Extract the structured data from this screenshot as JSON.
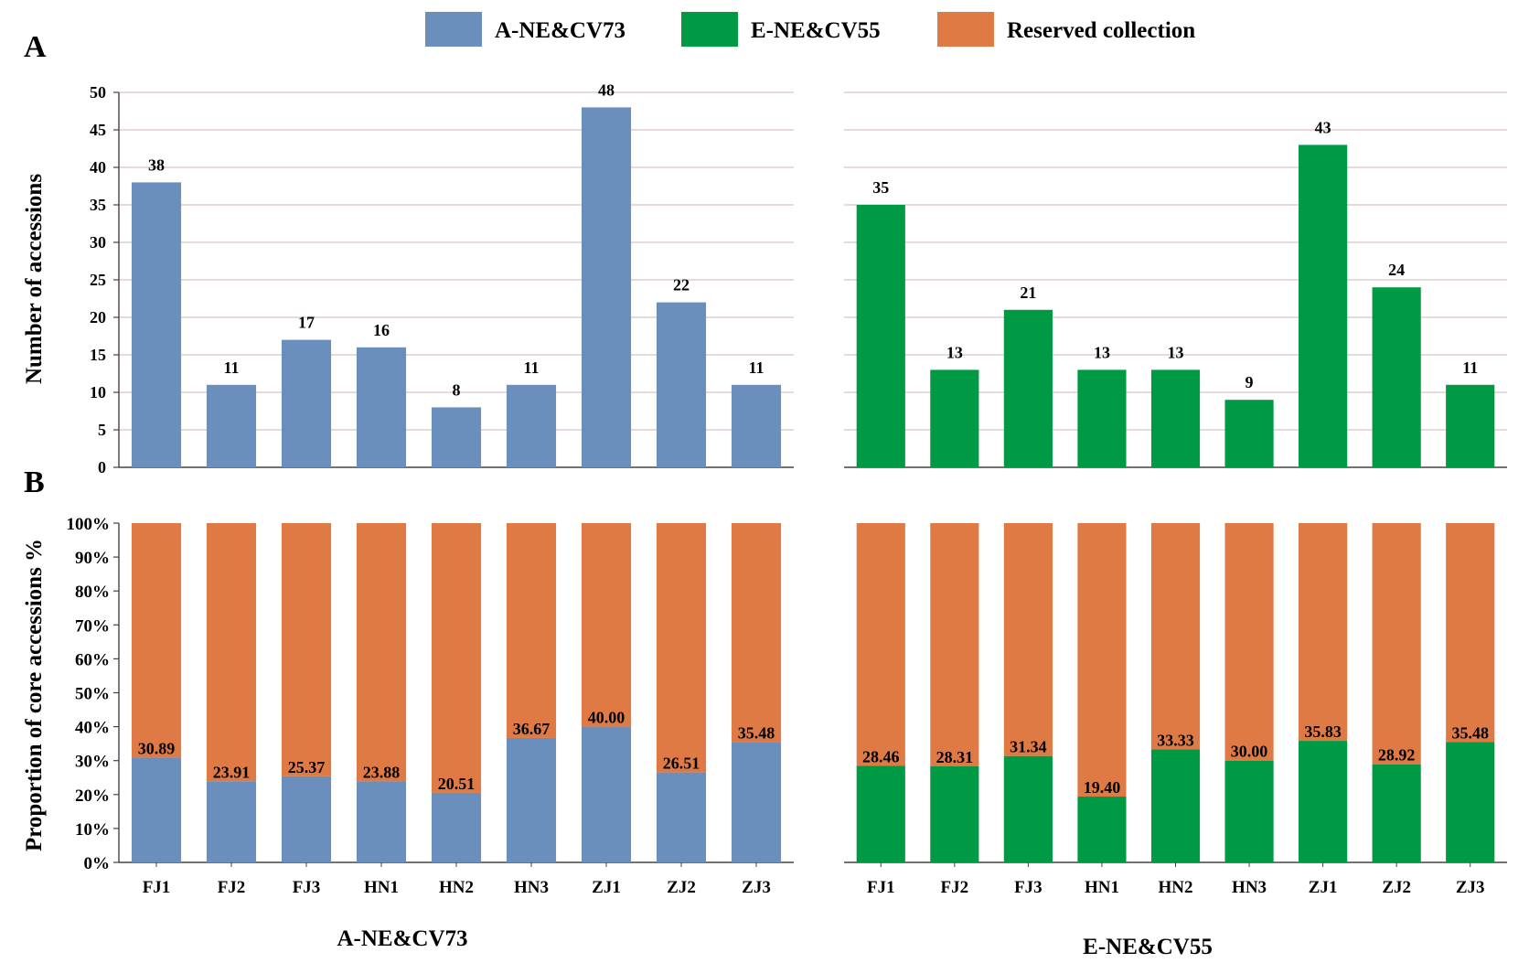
{
  "panel_labels": {
    "a": "A",
    "b": "B"
  },
  "legend": [
    {
      "label": "A-NE&CV73",
      "color": "#6a8fbd"
    },
    {
      "label": "E-NE&CV55",
      "color": "#009a44"
    },
    {
      "label": "Reserved collection",
      "color": "#e07a44"
    }
  ],
  "axis_titles": {
    "count": "Number of accessions",
    "proportion": "Proportion of core accessions %"
  },
  "group_titles": {
    "left": "A-NE&CV73",
    "right": "E-NE&CV55"
  },
  "chart_data": [
    {
      "type": "bar",
      "id": "A-left",
      "title": "",
      "series_name": "A-NE&CV73",
      "categories": [
        "FJ1",
        "FJ2",
        "FJ3",
        "HN1",
        "HN2",
        "HN3",
        "ZJ1",
        "ZJ2",
        "ZJ3"
      ],
      "values": [
        38,
        11,
        17,
        16,
        8,
        11,
        48,
        22,
        11
      ],
      "labels": [
        "38",
        "11",
        "17",
        "16",
        "8",
        "11",
        "48",
        "22",
        "11"
      ],
      "color": "#6a8fbd",
      "ylabel": "Number of accessions",
      "ylim": [
        0,
        50
      ],
      "yticks": [
        "0",
        "5",
        "10",
        "15",
        "20",
        "25",
        "30",
        "35",
        "40",
        "45",
        "50"
      ],
      "grid": true
    },
    {
      "type": "bar",
      "id": "A-right",
      "title": "",
      "series_name": "E-NE&CV55",
      "categories": [
        "FJ1",
        "FJ2",
        "FJ3",
        "HN1",
        "HN2",
        "HN3",
        "ZJ1",
        "ZJ2",
        "ZJ3"
      ],
      "values": [
        35,
        13,
        21,
        13,
        13,
        9,
        43,
        24,
        11
      ],
      "labels": [
        "35",
        "13",
        "21",
        "13",
        "13",
        "9",
        "43",
        "24",
        "11"
      ],
      "color": "#009a44",
      "ylim": [
        0,
        50
      ],
      "grid": true
    },
    {
      "type": "bar",
      "stacked": true,
      "id": "B-left",
      "categories": [
        "FJ1",
        "FJ2",
        "FJ3",
        "HN1",
        "HN2",
        "HN3",
        "ZJ1",
        "ZJ2",
        "ZJ3"
      ],
      "series": [
        {
          "name": "A-NE&CV73",
          "values": [
            30.89,
            23.91,
            25.37,
            23.88,
            20.51,
            36.67,
            40.0,
            26.51,
            35.48
          ],
          "color": "#6a8fbd"
        },
        {
          "name": "Reserved collection",
          "values": [
            69.11,
            76.09,
            74.63,
            76.12,
            79.49,
            63.33,
            60.0,
            73.49,
            64.52
          ],
          "color": "#e07a44"
        }
      ],
      "labels": [
        "30.89",
        "23.91",
        "25.37",
        "23.88",
        "20.51",
        "36.67",
        "40.00",
        "26.51",
        "35.48"
      ],
      "ylabel": "Proportion of core accessions %",
      "ylim": [
        0,
        100
      ],
      "yticks": [
        "0%",
        "10%",
        "20%",
        "30%",
        "40%",
        "50%",
        "60%",
        "70%",
        "80%",
        "90%",
        "100%"
      ],
      "xlabel": "A-NE&CV73"
    },
    {
      "type": "bar",
      "stacked": true,
      "id": "B-right",
      "categories": [
        "FJ1",
        "FJ2",
        "FJ3",
        "HN1",
        "HN2",
        "HN3",
        "ZJ1",
        "ZJ2",
        "ZJ3"
      ],
      "series": [
        {
          "name": "E-NE&CV55",
          "values": [
            28.46,
            28.31,
            31.34,
            19.4,
            33.33,
            30.0,
            35.83,
            28.92,
            35.48
          ],
          "color": "#009a44"
        },
        {
          "name": "Reserved collection",
          "values": [
            71.54,
            71.69,
            68.66,
            80.6,
            66.67,
            70.0,
            64.17,
            71.08,
            64.52
          ],
          "color": "#e07a44"
        }
      ],
      "labels": [
        "28.46",
        "28.31",
        "31.34",
        "19.40",
        "33.33",
        "30.00",
        "35.83",
        "28.92",
        "35.48"
      ],
      "ylim": [
        0,
        100
      ],
      "xlabel": "E-NE&CV55"
    }
  ]
}
